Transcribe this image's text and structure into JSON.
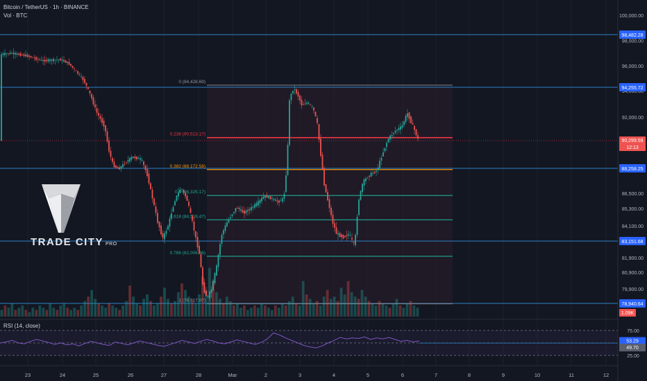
{
  "header": {
    "symbol_line": "Bitcoin / TetherUS · 1h · BINANCE",
    "vol_line": "Vol · BTC",
    "rsi_label": "RSI (14, close)"
  },
  "logo": {
    "text": "TRADE CITY",
    "suffix": "PRO"
  },
  "colors": {
    "background": "#131722",
    "up": "#26a69a",
    "down": "#ef5350",
    "level_line": "#2b82c9",
    "fib_red": "#f23645",
    "fib_orange": "#ff9800",
    "fib_teal": "#22ab94",
    "rsi_line": "#7e57c2"
  },
  "chart_data": {
    "type": "candlestick",
    "symbol": "BTC/USDT",
    "x_tick_labels": [
      "23",
      "24",
      "25",
      "26",
      "27",
      "28",
      "Mar",
      "2",
      "3",
      "4",
      "5",
      "6",
      "7",
      "8",
      "9",
      "10",
      "11",
      "12"
    ],
    "price_axis_labels": [
      "100,000.00",
      "98,000.00",
      "96,000.00",
      "94,000.00",
      "92,000.00",
      "86,500.00",
      "85,300.00",
      "84,100.00",
      "81,900.00",
      "80,900.00",
      "79,900.00"
    ],
    "horizontal_levels": [
      98482.28,
      94255.72,
      88258.25,
      83151.68,
      78940.64
    ],
    "price_badges": [
      {
        "text": "98,482.28",
        "value": 98482.28
      },
      {
        "text": "94,255.72",
        "value": 94255.72
      },
      {
        "text": "90,299.59",
        "sub": "12:13",
        "value": 90299.59,
        "current": true
      },
      {
        "text": "88,258.25",
        "value": 88258.25
      },
      {
        "text": "83,151.68",
        "value": 83151.68
      },
      {
        "text": "78,940.64",
        "value": 78940.64
      },
      {
        "text": "1.09K",
        "volume": true
      }
    ],
    "fib_levels": [
      {
        "label": "0 (94,428.69)",
        "value": 94428.69
      },
      {
        "label": "0.236 (90,513.17)",
        "value": 90513.17
      },
      {
        "label": "0.382 (88,172.58)",
        "value": 88172.58
      },
      {
        "label": "0.5 (86,325.17)",
        "value": 86325.17
      },
      {
        "label": "0.618 (84,516.47)",
        "value": 84516.47
      },
      {
        "label": "0.786 (82,006.66)",
        "value": 82006.66
      },
      {
        "label": "1 (78,917.07)",
        "value": 78917.07
      }
    ],
    "price_path": [
      [
        1,
        96900
      ],
      [
        18,
        97000
      ],
      [
        40,
        96800
      ],
      [
        62,
        96400
      ],
      [
        88,
        96500
      ],
      [
        100,
        96200
      ],
      [
        110,
        95600
      ],
      [
        122,
        94800
      ],
      [
        132,
        93600
      ],
      [
        140,
        92400
      ],
      [
        152,
        91300
      ],
      [
        158,
        89600
      ],
      [
        164,
        88500
      ],
      [
        172,
        88200
      ],
      [
        182,
        88700
      ],
      [
        192,
        89100
      ],
      [
        205,
        88900
      ],
      [
        214,
        87700
      ],
      [
        220,
        86300
      ],
      [
        228,
        84400
      ],
      [
        236,
        83300
      ],
      [
        244,
        84200
      ],
      [
        254,
        86100
      ],
      [
        262,
        86900
      ],
      [
        270,
        86100
      ],
      [
        280,
        84000
      ],
      [
        288,
        82300
      ],
      [
        294,
        79900
      ],
      [
        300,
        79300
      ],
      [
        306,
        79900
      ],
      [
        313,
        81200
      ],
      [
        320,
        83500
      ],
      [
        330,
        84500
      ],
      [
        342,
        85400
      ],
      [
        352,
        85000
      ],
      [
        362,
        85300
      ],
      [
        372,
        85700
      ],
      [
        382,
        86300
      ],
      [
        392,
        86100
      ],
      [
        402,
        85800
      ],
      [
        410,
        86100
      ],
      [
        415,
        88800
      ],
      [
        418,
        93300
      ],
      [
        424,
        94200
      ],
      [
        430,
        93700
      ],
      [
        436,
        92900
      ],
      [
        444,
        93100
      ],
      [
        452,
        92700
      ],
      [
        458,
        91600
      ],
      [
        462,
        89800
      ],
      [
        468,
        87200
      ],
      [
        474,
        85800
      ],
      [
        480,
        84400
      ],
      [
        486,
        83600
      ],
      [
        496,
        83400
      ],
      [
        504,
        83600
      ],
      [
        512,
        82800
      ],
      [
        518,
        86000
      ],
      [
        524,
        87300
      ],
      [
        534,
        87800
      ],
      [
        544,
        88100
      ],
      [
        552,
        89300
      ],
      [
        560,
        90400
      ],
      [
        570,
        91000
      ],
      [
        580,
        91300
      ],
      [
        588,
        92300
      ],
      [
        592,
        91800
      ],
      [
        598,
        91100
      ],
      [
        604,
        90300
      ]
    ],
    "volume_bars_k": [
      0.3,
      0.5,
      0.4,
      0.6,
      0.3,
      0.4,
      0.5,
      0.3,
      0.2,
      0.4,
      0.3,
      0.5,
      0.4,
      0.3,
      0.6,
      0.4,
      0.3,
      0.5,
      0.6,
      0.4,
      0.3,
      0.4,
      0.3,
      0.5,
      0.7,
      0.9,
      1.2,
      0.8,
      0.6,
      0.5,
      0.4,
      0.6,
      0.5,
      0.4,
      0.3,
      0.5,
      0.7,
      1.4,
      0.9,
      0.6,
      0.5,
      0.8,
      1.0,
      0.7,
      0.5,
      0.6,
      0.9,
      1.3,
      0.8,
      0.6,
      0.7,
      1.1,
      1.5,
      1.2,
      0.9,
      0.7,
      0.6,
      1.0,
      1.8,
      1.2,
      2.2,
      1.6,
      1.1,
      0.8,
      0.6,
      0.9,
      0.7,
      0.5,
      0.6,
      0.4,
      0.5,
      0.3,
      0.4,
      0.5,
      0.4,
      0.6,
      0.5,
      0.4,
      0.3,
      0.5,
      0.4,
      0.6,
      0.5,
      0.7,
      0.9,
      0.6,
      0.5,
      1.6,
      1.0,
      0.8,
      0.6,
      0.7,
      0.5,
      0.9,
      1.2,
      0.8,
      0.9,
      0.7,
      1.3,
      1.0,
      1.6,
      1.1,
      0.9,
      0.8,
      1.2,
      0.9,
      0.7,
      0.6,
      0.5,
      0.7,
      0.6,
      0.5,
      0.4,
      0.6,
      0.8,
      0.5,
      0.4,
      0.6,
      0.7,
      0.5,
      0.4
    ],
    "rsi": {
      "axis_labels": [
        "75.00",
        "25.00"
      ],
      "badges": [
        "53.29",
        "49.70"
      ],
      "values": [
        49.7,
        52,
        55,
        50,
        48,
        53,
        57,
        54,
        51,
        47,
        50,
        46,
        48,
        44,
        49,
        53,
        50,
        47,
        45,
        52,
        49,
        46,
        50,
        54,
        51,
        48,
        45,
        43,
        47,
        51,
        55,
        52,
        49,
        53,
        57,
        54,
        50,
        48,
        52,
        56,
        53,
        50,
        47,
        51,
        58,
        70,
        66,
        60,
        55,
        50,
        45,
        42,
        40,
        44,
        50,
        55,
        61,
        58,
        60,
        59,
        62,
        57,
        60,
        58,
        61,
        57,
        53,
        55,
        52,
        54
      ]
    }
  }
}
